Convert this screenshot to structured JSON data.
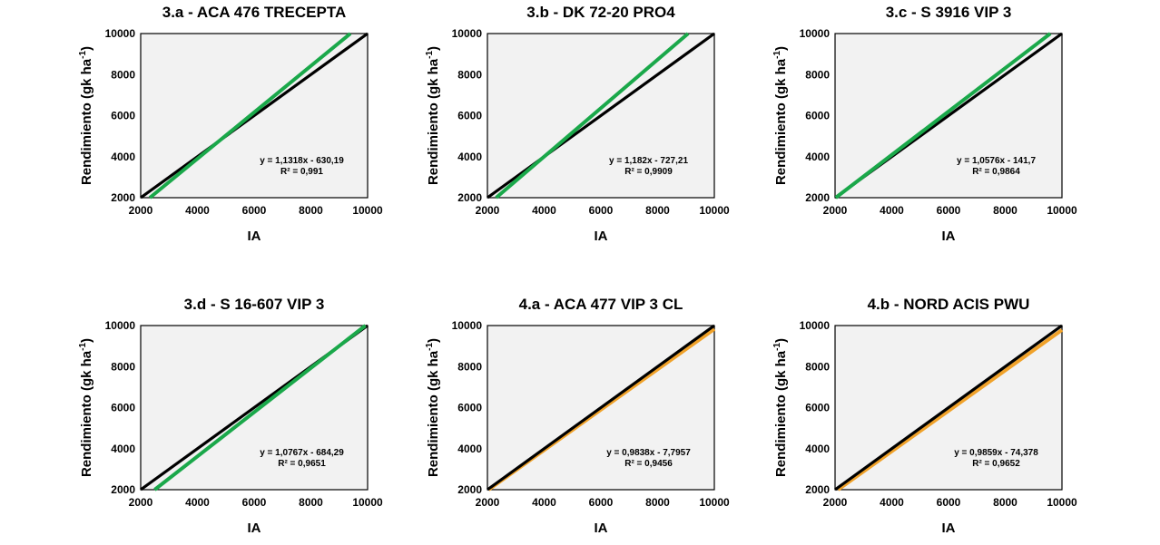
{
  "colors": {
    "identity_line": "#000000",
    "green_series": "#1aa84a",
    "orange_series": "#f0a22a",
    "plot_background": "#f2f2f2"
  },
  "chart_data": [
    {
      "type": "line",
      "title": "3.a -  ACA 476 TRECEPTA",
      "xlabel": "IA",
      "ylabel": "Rendimiento (gk ha",
      "ylabel_sup": "-1",
      "ylabel_close": ")",
      "xlim": [
        2000,
        10000
      ],
      "ylim": [
        2000,
        10000
      ],
      "xticks": [
        "2000",
        "4000",
        "6000",
        "8000",
        "10000"
      ],
      "yticks": [
        "2000",
        "4000",
        "6000",
        "8000",
        "10000"
      ],
      "series": [
        {
          "name": "1:1",
          "slope": 1,
          "intercept": 0,
          "color": "#000000"
        },
        {
          "name": "regresion",
          "slope": 1.1318,
          "intercept": -630.19,
          "color": "#1aa84a"
        }
      ],
      "equation": "y = 1,1318x - 630,19",
      "r2": "R² = 0,991"
    },
    {
      "type": "line",
      "title": "3.b -  DK 72-20 PRO4",
      "xlabel": "IA",
      "ylabel": "Rendimiento (gk ha",
      "ylabel_sup": "-1",
      "ylabel_close": ")",
      "xlim": [
        2000,
        10000
      ],
      "ylim": [
        2000,
        10000
      ],
      "xticks": [
        "2000",
        "4000",
        "6000",
        "8000",
        "10000"
      ],
      "yticks": [
        "2000",
        "4000",
        "6000",
        "8000",
        "10000"
      ],
      "series": [
        {
          "name": "1:1",
          "slope": 1,
          "intercept": 0,
          "color": "#000000"
        },
        {
          "name": "regresion",
          "slope": 1.182,
          "intercept": -727.21,
          "color": "#1aa84a"
        }
      ],
      "equation": "y = 1,182x - 727,21",
      "r2": "R² = 0,9909"
    },
    {
      "type": "line",
      "title": "3.c -  S 3916 VIP 3",
      "xlabel": "IA",
      "ylabel": "Rendimiento (gk ha",
      "ylabel_sup": "-1",
      "ylabel_close": ")",
      "xlim": [
        2000,
        10000
      ],
      "ylim": [
        2000,
        10000
      ],
      "xticks": [
        "2000",
        "4000",
        "6000",
        "8000",
        "10000"
      ],
      "yticks": [
        "2000",
        "4000",
        "6000",
        "8000",
        "10000"
      ],
      "series": [
        {
          "name": "1:1",
          "slope": 1,
          "intercept": 0,
          "color": "#000000"
        },
        {
          "name": "regresion",
          "slope": 1.0576,
          "intercept": -141.7,
          "color": "#1aa84a"
        }
      ],
      "equation": "y = 1,0576x - 141,7",
      "r2": "R² = 0,9864"
    },
    {
      "type": "line",
      "title": "3.d -  S 16-607 VIP 3",
      "xlabel": "IA",
      "ylabel": "Rendimiento (gk ha",
      "ylabel_sup": "-1",
      "ylabel_close": ")",
      "xlim": [
        2000,
        10000
      ],
      "ylim": [
        2000,
        10000
      ],
      "xticks": [
        "2000",
        "4000",
        "6000",
        "8000",
        "10000"
      ],
      "yticks": [
        "2000",
        "4000",
        "6000",
        "8000",
        "10000"
      ],
      "series": [
        {
          "name": "1:1",
          "slope": 1,
          "intercept": 0,
          "color": "#000000"
        },
        {
          "name": "regresion",
          "slope": 1.0767,
          "intercept": -684.29,
          "color": "#1aa84a"
        }
      ],
      "equation": "y = 1,0767x - 684,29",
      "r2": "R² = 0,9651"
    },
    {
      "type": "line",
      "title": "4.a -  ACA 477 VIP 3 CL",
      "xlabel": "IA",
      "ylabel": "Rendimiento (gk ha",
      "ylabel_sup": "-1",
      "ylabel_close": ")",
      "xlim": [
        2000,
        10000
      ],
      "ylim": [
        2000,
        10000
      ],
      "xticks": [
        "2000",
        "4000",
        "6000",
        "8000",
        "10000"
      ],
      "yticks": [
        "2000",
        "4000",
        "6000",
        "8000",
        "10000"
      ],
      "series": [
        {
          "name": "regresion",
          "slope": 0.9838,
          "intercept": -7.7957,
          "color": "#f0a22a"
        },
        {
          "name": "1:1",
          "slope": 1,
          "intercept": 0,
          "color": "#000000"
        }
      ],
      "equation": "y = 0,9838x - 7,7957",
      "r2": "R² = 0,9456"
    },
    {
      "type": "line",
      "title": "4.b -  NORD ACIS PWU",
      "xlabel": "IA",
      "ylabel": "Rendimiento (gk ha",
      "ylabel_sup": "-1",
      "ylabel_close": ")",
      "xlim": [
        2000,
        10000
      ],
      "ylim": [
        2000,
        10000
      ],
      "xticks": [
        "2000",
        "4000",
        "6000",
        "8000",
        "10000"
      ],
      "yticks": [
        "2000",
        "4000",
        "6000",
        "8000",
        "10000"
      ],
      "series": [
        {
          "name": "regresion",
          "slope": 0.9859,
          "intercept": -74.378,
          "color": "#f0a22a"
        },
        {
          "name": "1:1",
          "slope": 1,
          "intercept": 0,
          "color": "#000000"
        }
      ],
      "equation": "y = 0,9859x - 74,378",
      "r2": "R² = 0,9652"
    }
  ]
}
